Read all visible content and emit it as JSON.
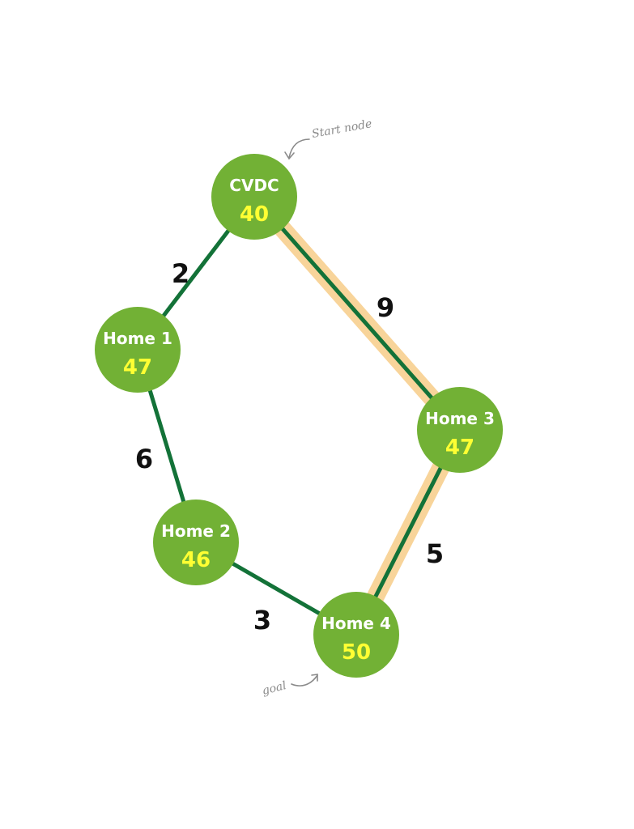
{
  "nodes": [
    {
      "id": "cvdc",
      "name": "CVDC",
      "value": "40"
    },
    {
      "id": "home1",
      "name": "Home 1",
      "value": "47"
    },
    {
      "id": "home2",
      "name": "Home 2",
      "value": "46"
    },
    {
      "id": "home3",
      "name": "Home 3",
      "value": "47"
    },
    {
      "id": "home4",
      "name": "Home 4",
      "value": "50"
    }
  ],
  "edges": [
    {
      "from": "cvdc",
      "to": "home1",
      "weight": "2",
      "highlighted": false
    },
    {
      "from": "home1",
      "to": "home2",
      "weight": "6",
      "highlighted": false
    },
    {
      "from": "home2",
      "to": "home4",
      "weight": "3",
      "highlighted": false
    },
    {
      "from": "cvdc",
      "to": "home3",
      "weight": "9",
      "highlighted": true
    },
    {
      "from": "home3",
      "to": "home4",
      "weight": "5",
      "highlighted": true
    }
  ],
  "annotations": {
    "start_note": "Start node",
    "goal_note": "goal"
  },
  "colors": {
    "node_fill": "#72b135",
    "node_name": "#ffffff",
    "node_value": "#ffff33",
    "edge": "#137238",
    "path_highlight": "#f8d49a",
    "weight_text": "#111111",
    "note_text": "#8a8a8a"
  }
}
